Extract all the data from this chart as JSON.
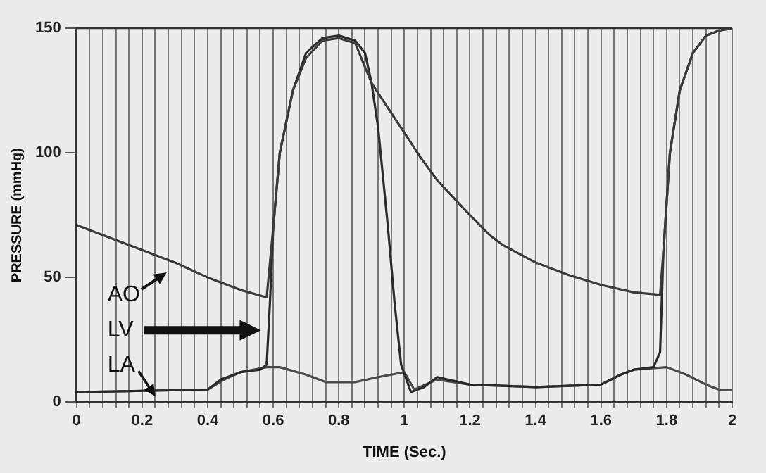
{
  "chart_data": {
    "type": "line",
    "xlabel": "TIME (Sec.)",
    "ylabel": "PRESSURE (mmHg)",
    "xlim": [
      0,
      2
    ],
    "ylim": [
      0,
      150
    ],
    "xticks": [
      0,
      {
        "value": 0.04,
        "label": null
      },
      {
        "value": 0.08,
        "label": null
      },
      {
        "value": 0.12,
        "label": null
      },
      {
        "value": 0.16,
        "label": null
      },
      0.2,
      {
        "value": 0.24,
        "label": null
      },
      {
        "value": 0.28,
        "label": null
      },
      {
        "value": 0.32,
        "label": null
      },
      {
        "value": 0.36,
        "label": null
      },
      0.4,
      {
        "value": 0.44,
        "label": null
      },
      {
        "value": 0.48,
        "label": null
      },
      {
        "value": 0.52,
        "label": null
      },
      {
        "value": 0.56,
        "label": null
      },
      0.6,
      {
        "value": 0.64,
        "label": null
      },
      {
        "value": 0.68,
        "label": null
      },
      {
        "value": 0.72,
        "label": null
      },
      {
        "value": 0.76,
        "label": null
      },
      0.8,
      {
        "value": 0.84,
        "label": null
      },
      {
        "value": 0.88,
        "label": null
      },
      {
        "value": 0.92,
        "label": null
      },
      {
        "value": 0.96,
        "label": null
      },
      1,
      {
        "value": 1.04,
        "label": null
      },
      {
        "value": 1.08,
        "label": null
      },
      {
        "value": 1.12,
        "label": null
      },
      {
        "value": 1.16,
        "label": null
      },
      1.2,
      {
        "value": 1.24,
        "label": null
      },
      {
        "value": 1.28,
        "label": null
      },
      {
        "value": 1.32,
        "label": null
      },
      {
        "value": 1.36,
        "label": null
      },
      1.4,
      {
        "value": 1.44,
        "label": null
      },
      {
        "value": 1.48,
        "label": null
      },
      {
        "value": 1.52,
        "label": null
      },
      {
        "value": 1.56,
        "label": null
      },
      1.6,
      {
        "value": 1.64,
        "label": null
      },
      {
        "value": 1.68,
        "label": null
      },
      {
        "value": 1.72,
        "label": null
      },
      {
        "value": 1.76,
        "label": null
      },
      1.8,
      {
        "value": 1.84,
        "label": null
      },
      {
        "value": 1.88,
        "label": null
      },
      {
        "value": 1.92,
        "label": null
      },
      {
        "value": 1.96,
        "label": null
      },
      2
    ],
    "yticks": [
      0,
      50,
      100,
      150
    ],
    "grid": "x",
    "legend": false,
    "marker": "none",
    "line_style": "solid",
    "series": [
      {
        "color": "#3a3a3a",
        "x": [
          0,
          0.1,
          0.2,
          0.3,
          0.4,
          0.5,
          0.58,
          0.6,
          0.62,
          0.66,
          0.7,
          0.75,
          0.8,
          0.85,
          0.9,
          0.95,
          1.0,
          1.05,
          1.1,
          1.15,
          1.2,
          1.26,
          1.3,
          1.4,
          1.5,
          1.6,
          1.7,
          1.78,
          1.79,
          1.81,
          1.84,
          1.88,
          1.92,
          1.96,
          2.0
        ],
        "values": [
          71,
          66,
          61,
          56,
          50,
          45,
          42,
          70,
          100,
          125,
          138,
          145,
          146,
          144,
          128,
          118,
          108,
          98,
          89,
          82,
          75,
          67,
          63,
          56,
          51,
          47,
          44,
          43,
          60,
          100,
          125,
          140,
          147,
          149,
          150
        ]
      },
      {
        "color": "#2a2a2a",
        "x": [
          0,
          0.4,
          0.44,
          0.5,
          0.56,
          0.58,
          0.59,
          0.6,
          0.62,
          0.66,
          0.7,
          0.75,
          0.8,
          0.85,
          0.88,
          0.9,
          0.92,
          0.95,
          0.97,
          0.99,
          1.02,
          1.06,
          1.1,
          1.2,
          1.4,
          1.6,
          1.66,
          1.7,
          1.76,
          1.78,
          1.79,
          1.81,
          1.84,
          1.88,
          1.92,
          1.96,
          2.0
        ],
        "values": [
          4,
          5,
          9,
          12,
          13,
          15,
          40,
          70,
          100,
          125,
          140,
          146,
          147,
          145,
          140,
          128,
          110,
          70,
          40,
          15,
          4,
          6,
          10,
          7,
          6,
          7,
          11,
          13,
          14,
          20,
          60,
          100,
          125,
          140,
          147,
          149,
          150
        ]
      },
      {
        "color": "#4a4a4a",
        "x": [
          0,
          0.4,
          0.45,
          0.5,
          0.58,
          0.62,
          0.7,
          0.76,
          0.85,
          0.92,
          1.0,
          1.03,
          1.1,
          1.2,
          1.4,
          1.6,
          1.66,
          1.7,
          1.8,
          1.86,
          1.92,
          1.96,
          2.0
        ],
        "values": [
          4,
          5,
          9,
          12,
          14,
          14,
          11,
          8,
          8,
          10,
          12,
          5,
          9,
          7,
          6,
          7,
          11,
          13,
          14,
          11,
          7,
          5,
          5
        ]
      }
    ],
    "annotations": [
      "AO",
      "LV",
      "LA"
    ]
  }
}
